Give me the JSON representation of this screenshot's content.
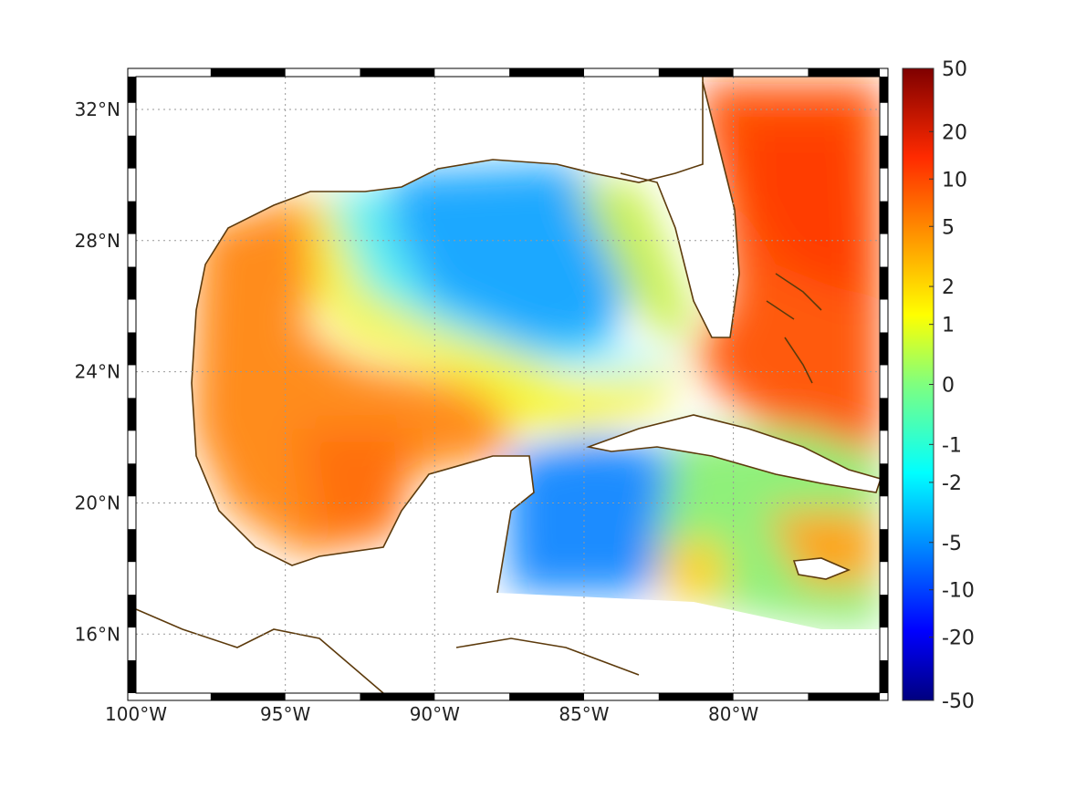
{
  "map": {
    "lon_range": [
      -100,
      -75.1
    ],
    "lat_range": [
      14.2,
      33.0
    ],
    "lat_ticks": [
      {
        "value": 32,
        "label": "32°N"
      },
      {
        "value": 28,
        "label": "28°N"
      },
      {
        "value": 24,
        "label": "24°N"
      },
      {
        "value": 20,
        "label": "20°N"
      },
      {
        "value": 16,
        "label": "16°N"
      }
    ],
    "lon_ticks": [
      {
        "value": -100,
        "label": "100°W"
      },
      {
        "value": -95,
        "label": "95°W"
      },
      {
        "value": -90,
        "label": "90°W"
      },
      {
        "value": -85,
        "label": "85°W"
      },
      {
        "value": -80,
        "label": "80°W"
      }
    ],
    "grid": "dotted",
    "coastline_color": "#5c3a0c"
  },
  "colorbar": {
    "colormap": "jet",
    "placement": "right",
    "labels": [
      "50",
      "20",
      "10",
      "5",
      "2",
      "1",
      "0",
      "-1",
      "-2",
      "-5",
      "-10",
      "-20",
      "-50"
    ]
  }
}
